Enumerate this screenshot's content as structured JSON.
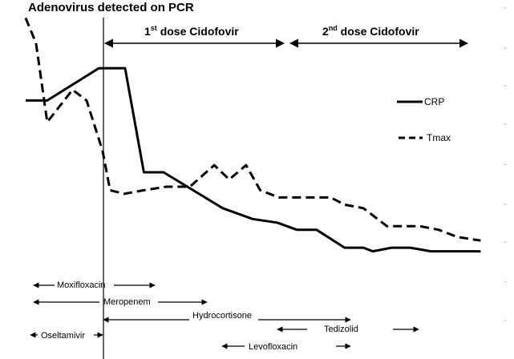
{
  "chart_data": {
    "type": "line",
    "title": "Adenovirus detected on PCR",
    "legend_position": "right",
    "series": [
      {
        "name": "CRP",
        "style": "solid",
        "color": "#000000",
        "points": [
          [
            0,
            0.72
          ],
          [
            2.3,
            0.72
          ],
          [
            7.8,
            0.81
          ],
          [
            10.6,
            0.81
          ],
          [
            12.6,
            0.52
          ],
          [
            14.7,
            0.52
          ],
          [
            21,
            0.42
          ],
          [
            24.2,
            0.39
          ],
          [
            26.8,
            0.38
          ],
          [
            28.9,
            0.36
          ],
          [
            31,
            0.36
          ],
          [
            34,
            0.31
          ],
          [
            36,
            0.31
          ],
          [
            37,
            0.3
          ],
          [
            39,
            0.31
          ],
          [
            41,
            0.31
          ],
          [
            43.2,
            0.3
          ],
          [
            45.4,
            0.3
          ],
          [
            48,
            0.3
          ],
          [
            48.5,
            0.3
          ]
        ]
      },
      {
        "name": "Tmax",
        "style": "dashed",
        "color": "#000000",
        "points": [
          [
            0,
            0.95
          ],
          [
            1.1,
            0.88
          ],
          [
            2.3,
            0.66
          ],
          [
            5,
            0.75
          ],
          [
            6.5,
            0.72
          ],
          [
            8.2,
            0.58
          ],
          [
            9,
            0.47
          ],
          [
            10.5,
            0.46
          ],
          [
            12.6,
            0.47
          ],
          [
            15,
            0.48
          ],
          [
            17.5,
            0.48
          ],
          [
            20.1,
            0.54
          ],
          [
            21.7,
            0.5
          ],
          [
            23.5,
            0.54
          ],
          [
            25,
            0.47
          ],
          [
            27,
            0.45
          ],
          [
            29,
            0.45
          ],
          [
            32.5,
            0.45
          ],
          [
            34,
            0.43
          ],
          [
            36,
            0.42
          ],
          [
            38.5,
            0.37
          ],
          [
            40,
            0.37
          ],
          [
            42,
            0.37
          ],
          [
            44,
            0.36
          ],
          [
            46,
            0.34
          ],
          [
            48.5,
            0.33
          ]
        ]
      }
    ],
    "annotations": {
      "pcr_label": "Adenovirus detected on PCR",
      "dose1": {
        "prefix": "1",
        "sup": "st",
        "rest": " dose Cidofovir"
      },
      "dose2": {
        "prefix": "2",
        "sup": "nd",
        "rest": "  dose Cidofovir"
      }
    },
    "treatments": [
      {
        "name": "Moxifloxacin"
      },
      {
        "name": "Meropenem"
      },
      {
        "name": "Hydrocortisone"
      },
      {
        "name": "Tedizolid"
      },
      {
        "name": "Oseltamivir"
      },
      {
        "name": "Levofloxacin"
      }
    ]
  }
}
